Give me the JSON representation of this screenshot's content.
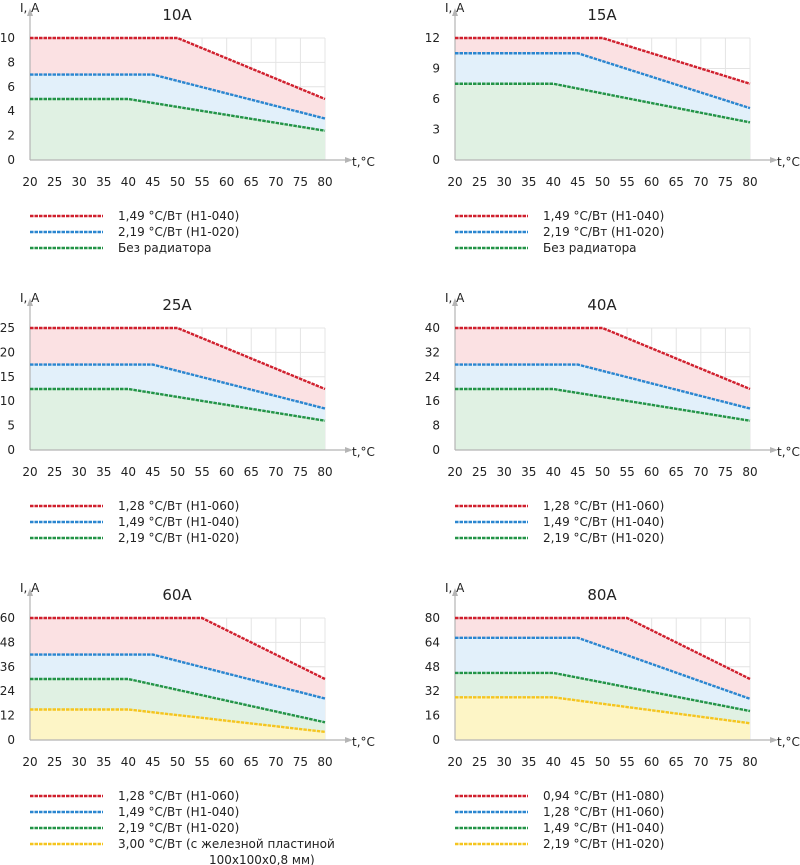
{
  "colors": {
    "red": "#d0202e",
    "blue": "#2a86d0",
    "green": "#239447",
    "yellow": "#f5c51f",
    "fill_red": "#fbe1e3",
    "fill_blue": "#e2f0fa",
    "fill_green": "#e0f1e3",
    "fill_yellow": "#fdf5c6",
    "axis": "#b5b5b5",
    "grid": "#e4e4e4",
    "text": "#222222"
  },
  "chart_data": [
    {
      "type": "area",
      "title": "10A",
      "ylabel": "I, A",
      "xlabel": "t,°C",
      "xlim": [
        20,
        80
      ],
      "ylim": [
        0,
        10
      ],
      "x_ticks": [
        "20",
        "25",
        "30",
        "35",
        "40",
        "45",
        "50",
        "55",
        "60",
        "65",
        "70",
        "75",
        "80"
      ],
      "y_ticks": [
        "0",
        "2",
        "4",
        "6",
        "8",
        "10"
      ],
      "series": [
        {
          "name": "1,49 °C/Вт (H1-040)",
          "color": "red",
          "points": [
            [
              20,
              10
            ],
            [
              50,
              10
            ],
            [
              80,
              5
            ]
          ]
        },
        {
          "name": "2,19 °C/Вт (H1-020)",
          "color": "blue",
          "points": [
            [
              20,
              7
            ],
            [
              45,
              7
            ],
            [
              80,
              3.4
            ]
          ]
        },
        {
          "name": "Без радиатора",
          "color": "green",
          "points": [
            [
              20,
              5
            ],
            [
              40,
              5
            ],
            [
              80,
              2.4
            ]
          ]
        }
      ]
    },
    {
      "type": "area",
      "title": "15A",
      "ylabel": "I, A",
      "xlabel": "t,°C",
      "xlim": [
        20,
        80
      ],
      "ylim": [
        0,
        12
      ],
      "x_ticks": [
        "20",
        "25",
        "30",
        "35",
        "40",
        "45",
        "50",
        "55",
        "60",
        "65",
        "70",
        "75",
        "80"
      ],
      "y_ticks": [
        "0",
        "3",
        "6",
        "9",
        "12"
      ],
      "series": [
        {
          "name": "1,49 °C/Вт (H1-040)",
          "color": "red",
          "points": [
            [
              20,
              12
            ],
            [
              50,
              12
            ],
            [
              80,
              7.5
            ]
          ]
        },
        {
          "name": "2,19 °C/Вт (H1-020)",
          "color": "blue",
          "points": [
            [
              20,
              10.5
            ],
            [
              45,
              10.5
            ],
            [
              80,
              5.1
            ]
          ]
        },
        {
          "name": "Без радиатора",
          "color": "green",
          "points": [
            [
              20,
              7.5
            ],
            [
              40,
              7.5
            ],
            [
              80,
              3.7
            ]
          ]
        }
      ]
    },
    {
      "type": "area",
      "title": "25A",
      "ylabel": "I, A",
      "xlabel": "t,°C",
      "xlim": [
        20,
        80
      ],
      "ylim": [
        0,
        25
      ],
      "x_ticks": [
        "20",
        "25",
        "30",
        "35",
        "40",
        "45",
        "50",
        "55",
        "60",
        "65",
        "70",
        "75",
        "80"
      ],
      "y_ticks": [
        "0",
        "5",
        "10",
        "15",
        "20",
        "25"
      ],
      "series": [
        {
          "name": "1,28 °C/Вт (H1-060)",
          "color": "red",
          "points": [
            [
              20,
              25
            ],
            [
              50,
              25
            ],
            [
              80,
              12.5
            ]
          ]
        },
        {
          "name": "1,49 °C/Вт (H1-040)",
          "color": "blue",
          "points": [
            [
              20,
              17.5
            ],
            [
              45,
              17.5
            ],
            [
              80,
              8.5
            ]
          ]
        },
        {
          "name": "2,19 °C/Вт (H1-020)",
          "color": "green",
          "points": [
            [
              20,
              12.5
            ],
            [
              40,
              12.5
            ],
            [
              80,
              6
            ]
          ]
        }
      ]
    },
    {
      "type": "area",
      "title": "40A",
      "ylabel": "I, A",
      "xlabel": "t,°C",
      "xlim": [
        20,
        80
      ],
      "ylim": [
        0,
        40
      ],
      "x_ticks": [
        "20",
        "25",
        "30",
        "35",
        "40",
        "45",
        "50",
        "55",
        "60",
        "65",
        "70",
        "75",
        "80"
      ],
      "y_ticks": [
        "0",
        "8",
        "16",
        "24",
        "32",
        "40"
      ],
      "series": [
        {
          "name": "1,28 °C/Вт (H1-060)",
          "color": "red",
          "points": [
            [
              20,
              40
            ],
            [
              50,
              40
            ],
            [
              80,
              20
            ]
          ]
        },
        {
          "name": "1,49 °C/Вт (H1-040)",
          "color": "blue",
          "points": [
            [
              20,
              28
            ],
            [
              45,
              28
            ],
            [
              80,
              13.6
            ]
          ]
        },
        {
          "name": "2,19 °C/Вт (H1-020)",
          "color": "green",
          "points": [
            [
              20,
              20
            ],
            [
              40,
              20
            ],
            [
              80,
              9.6
            ]
          ]
        }
      ]
    },
    {
      "type": "area",
      "title": "60A",
      "ylabel": "I, A",
      "xlabel": "t,°C",
      "xlim": [
        20,
        80
      ],
      "ylim": [
        0,
        60
      ],
      "x_ticks": [
        "20",
        "25",
        "30",
        "35",
        "40",
        "45",
        "50",
        "55",
        "60",
        "65",
        "70",
        "75",
        "80"
      ],
      "y_ticks": [
        "0",
        "12",
        "24",
        "36",
        "48",
        "60"
      ],
      "series": [
        {
          "name": "1,28 °C/Вт (H1-060)",
          "color": "red",
          "points": [
            [
              20,
              60
            ],
            [
              55,
              60
            ],
            [
              80,
              30
            ]
          ]
        },
        {
          "name": "1,49 °C/Вт (H1-040)",
          "color": "blue",
          "points": [
            [
              20,
              42
            ],
            [
              45,
              42
            ],
            [
              80,
              20.4
            ]
          ]
        },
        {
          "name": "2,19 °C/Вт (H1-020)",
          "color": "green",
          "points": [
            [
              20,
              30
            ],
            [
              40,
              30
            ],
            [
              80,
              8.7
            ]
          ]
        },
        {
          "name": "3,00 °C/Вт (с железной пластиной",
          "name_line2": "100х100х0,8 мм)",
          "color": "yellow",
          "points": [
            [
              20,
              15
            ],
            [
              40,
              15
            ],
            [
              80,
              4
            ]
          ]
        }
      ]
    },
    {
      "type": "area",
      "title": "80A",
      "ylabel": "I, A",
      "xlabel": "t,°C",
      "xlim": [
        20,
        80
      ],
      "ylim": [
        0,
        80
      ],
      "x_ticks": [
        "20",
        "25",
        "30",
        "35",
        "40",
        "45",
        "50",
        "55",
        "60",
        "65",
        "70",
        "75",
        "80"
      ],
      "y_ticks": [
        "0",
        "16",
        "32",
        "48",
        "64",
        "80"
      ],
      "series": [
        {
          "name": "0,94 °C/Вт (H1-080)",
          "color": "red",
          "points": [
            [
              20,
              80
            ],
            [
              55,
              80
            ],
            [
              80,
              40
            ]
          ]
        },
        {
          "name": "1,28 °C/Вт (H1-060)",
          "color": "blue",
          "points": [
            [
              20,
              67
            ],
            [
              45,
              67
            ],
            [
              80,
              27
            ]
          ]
        },
        {
          "name": "1,49 °C/Вт (H1-040)",
          "color": "green",
          "points": [
            [
              20,
              44
            ],
            [
              40,
              44
            ],
            [
              80,
              19
            ]
          ]
        },
        {
          "name": "2,19 °C/Вт (H1-020)",
          "color": "yellow",
          "points": [
            [
              20,
              28
            ],
            [
              40,
              28
            ],
            [
              80,
              11
            ]
          ]
        }
      ]
    }
  ]
}
